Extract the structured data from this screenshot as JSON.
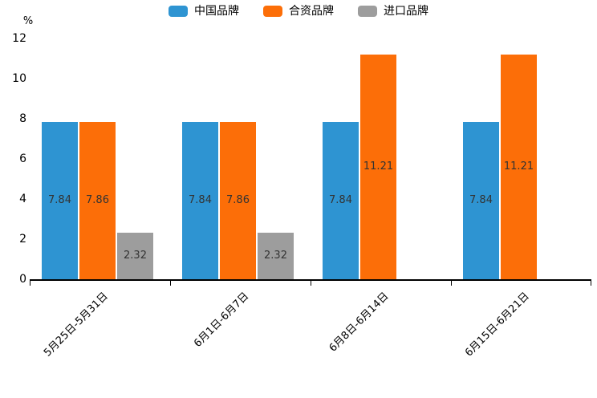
{
  "chart_data": {
    "type": "bar",
    "title": "",
    "ylabel": "%",
    "xlabel": "",
    "categories": [
      "5月25日-5月31日",
      "6月1日-6月7日",
      "6月8日-6月14日",
      "6月15日-6月21日"
    ],
    "series": [
      {
        "name": "中国品牌",
        "color": "#2E94D2",
        "values": [
          7.84,
          7.84,
          7.84,
          7.84
        ]
      },
      {
        "name": "合资品牌",
        "color": "#FC6E08",
        "values": [
          7.86,
          7.86,
          11.21,
          11.21
        ]
      },
      {
        "name": "进口品牌",
        "color": "#9D9D9D",
        "values": [
          2.32,
          2.32,
          null,
          null
        ]
      }
    ],
    "value_label_format": "2dp",
    "value_label_color": "#333333",
    "y_ticks": [
      0,
      2,
      4,
      6,
      8,
      10,
      12
    ],
    "ylim": [
      0,
      12
    ],
    "grid": false,
    "legend_position": "top",
    "axis_color": "#000000",
    "background_color": "#ffffff"
  }
}
